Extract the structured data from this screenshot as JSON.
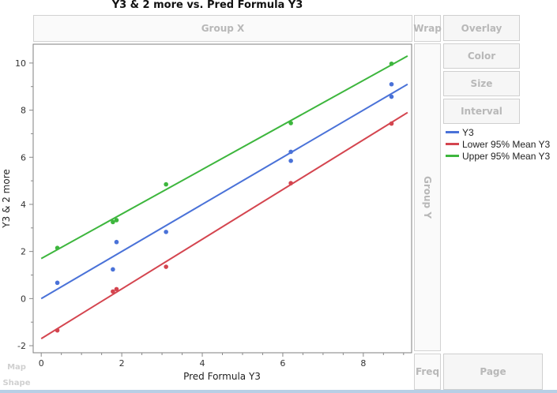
{
  "title": "Y3 & 2 more vs. Pred Formula Y3",
  "zones": {
    "group_x": "Group X",
    "group_y": "Group Y",
    "wrap": "Wrap",
    "overlay": "Overlay",
    "color": "Color",
    "size": "Size",
    "interval": "Interval",
    "freq": "Freq",
    "page": "Page",
    "map_shape_line1": "Map",
    "map_shape_line2": "Shape"
  },
  "legend": [
    {
      "label": "Y3",
      "color": "#4a72d8"
    },
    {
      "label": "Lower 95% Mean Y3",
      "color": "#d4454f"
    },
    {
      "label": "Upper 95% Mean Y3",
      "color": "#3db63d"
    }
  ],
  "chart_data": {
    "type": "scatter",
    "xlabel": "Pred Formula Y3",
    "ylabel": "Y3 & 2 more",
    "xlim": [
      -0.2,
      9.2
    ],
    "ylim": [
      -2.3,
      10.8
    ],
    "xticks": [
      "0",
      "2",
      "4",
      "6",
      "8"
    ],
    "yticks": [
      "-2",
      "0",
      "2",
      "4",
      "6",
      "8",
      "10"
    ],
    "grid": false,
    "legend_position": "right",
    "series": [
      {
        "name": "Y3",
        "color": "#4a72d8",
        "x": [
          0.4,
          1.78,
          1.87,
          3.1,
          6.2,
          6.2,
          8.7,
          8.7
        ],
        "y": [
          0.67,
          1.24,
          2.4,
          2.83,
          6.23,
          5.85,
          9.1,
          8.57
        ],
        "fit": [
          [
            0.0,
            0.0
          ],
          [
            9.1,
            9.1
          ]
        ]
      },
      {
        "name": "Lower 95% Mean Y3",
        "color": "#d4454f",
        "x": [
          0.4,
          1.78,
          1.87,
          3.1,
          6.2,
          8.7
        ],
        "y": [
          -1.35,
          0.3,
          0.4,
          1.35,
          4.9,
          7.43
        ],
        "fit": [
          [
            0.0,
            -1.7
          ],
          [
            9.1,
            7.9
          ]
        ]
      },
      {
        "name": "Upper 95% Mean Y3",
        "color": "#3db63d",
        "x": [
          0.4,
          1.78,
          1.87,
          3.1,
          6.2,
          8.7
        ],
        "y": [
          2.15,
          3.25,
          3.33,
          4.85,
          7.45,
          9.97
        ],
        "fit": [
          [
            0.0,
            1.7
          ],
          [
            9.1,
            10.3
          ]
        ]
      }
    ]
  }
}
